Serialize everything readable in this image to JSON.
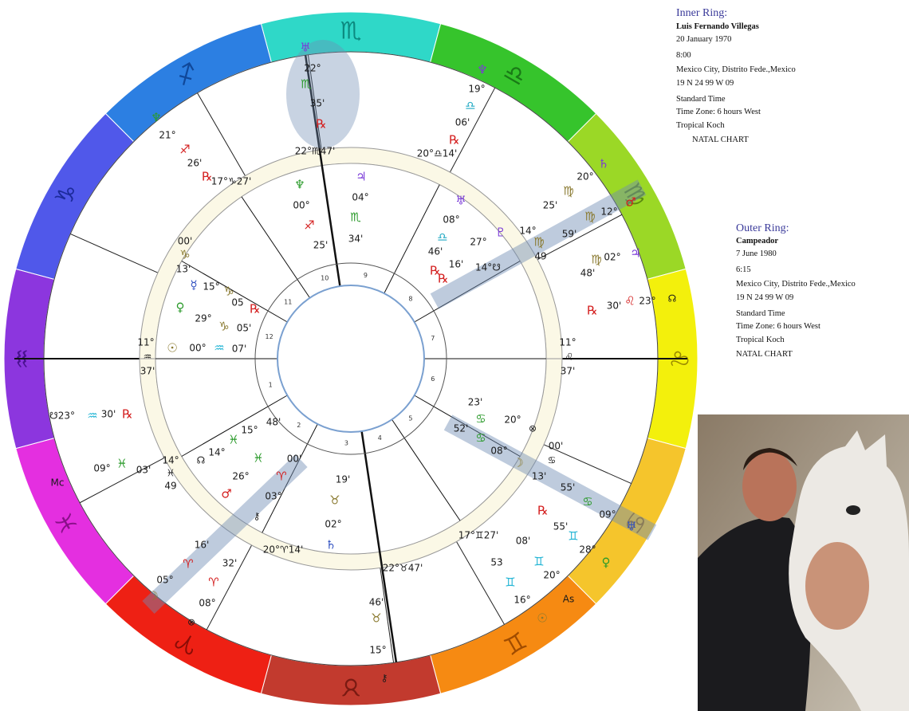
{
  "wheel": {
    "signs": [
      "♏",
      "♎",
      "♍",
      "♌",
      "♋",
      "♊",
      "♉",
      "♈",
      "♓",
      "♒",
      "♑",
      "♐"
    ],
    "house_numbers": [
      "1",
      "2",
      "3",
      "4",
      "5",
      "6",
      "7",
      "8",
      "9",
      "10",
      "11",
      "12"
    ],
    "labels": [
      "♅",
      "22°",
      "♏",
      "35'",
      "℞",
      "♆",
      "19°",
      "♎",
      "06'",
      "℞",
      "♆",
      "21°",
      "♐",
      "26'",
      "℞",
      "22°♏47'",
      "20°♎14'",
      "17°♑27'",
      "00'",
      "♑",
      "13'",
      "11°",
      "♒",
      "37'",
      "11°",
      "♌",
      "37'",
      "14°",
      "♍",
      "49",
      "♃",
      "04°",
      "♏",
      "34'",
      "♆",
      "00°",
      "♐",
      "25'",
      "♅",
      "08°",
      "♎",
      "46'",
      "℞",
      "♇",
      "27°",
      "16'",
      "℞",
      "14°☋",
      "♄",
      "20°",
      "♍",
      "25'",
      "♂",
      "12°",
      "♍",
      "59'",
      "♃",
      "02°",
      "♍",
      "48'",
      "☊",
      "23°",
      "♌",
      "30'",
      "℞",
      "☿",
      "15°",
      "♑",
      "05",
      "℞",
      "♀",
      "29°",
      "♑",
      "05'",
      "☉",
      "00°",
      "♒",
      "07'",
      "☋23°",
      "♒",
      "30'",
      "℞",
      "09°",
      "♓",
      "03'",
      "Mc",
      "14°",
      "♓",
      "49",
      "☊",
      "14°",
      "♓",
      "15°",
      "48'",
      "♓",
      "00'",
      "♈",
      "26°",
      "♂",
      "03°",
      "⚷",
      "16'",
      "♈",
      "05°",
      "☽",
      "32'",
      "♈",
      "08°",
      "⊗",
      "20°♈14'",
      "19'",
      "♉",
      "02°",
      "♄",
      "22°♉47'",
      "46'",
      "♉",
      "15°",
      "⚷",
      "23'",
      "♋",
      "20°",
      "⊗",
      "52'",
      "♋",
      "08°",
      "☽",
      "00'",
      "♋",
      "13'",
      "55'",
      "♋",
      "09°",
      "♅",
      "℞",
      "55'",
      "♊",
      "28°",
      "♀",
      "17°♊27'",
      "08'",
      "53",
      "♊",
      "20°",
      "♊",
      "16°",
      "☉",
      "As"
    ]
  },
  "inner_ring": {
    "heading": "Inner Ring:",
    "name": "Luis Fernando Villegas",
    "lines": [
      "20 January 1970",
      "8:00",
      "Mexico City, Distrito Fede.,Mexico",
      "19 N 24   99 W 09",
      "Standard Time",
      "Time Zone: 6 hours West",
      "Tropical Koch"
    ],
    "chart_type": "NATAL CHART"
  },
  "outer_ring": {
    "heading": "Outer Ring:",
    "name": "Campeador",
    "lines": [
      "7 June 1980",
      "6:15",
      "Mexico City, Distrito Fede.,Mexico",
      "19 N 24   99 W 09",
      "Standard Time",
      "Time Zone: 6 hours West",
      "Tropical Koch"
    ],
    "chart_type": "NATAL CHART"
  }
}
